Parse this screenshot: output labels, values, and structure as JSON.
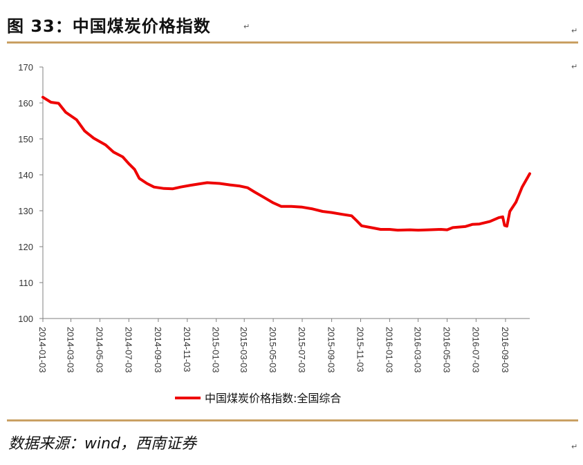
{
  "figure": {
    "title": "图 33：中国煤炭价格指数",
    "source": "数据来源：wind，西南证券",
    "para_mark": "↵"
  },
  "colors": {
    "line": "#ee0000",
    "rule": "#c9a063",
    "axis": "#7f7f7f"
  },
  "chart_data": {
    "type": "line",
    "title": "",
    "xlabel": "",
    "ylabel": "",
    "ylim": [
      100,
      170
    ],
    "yticks": [
      100,
      110,
      120,
      130,
      140,
      150,
      160,
      170
    ],
    "xlim": [
      "2014-01-03",
      "2016-10-24"
    ],
    "xticks": [
      "2014-01-03",
      "2014-03-03",
      "2014-05-03",
      "2014-07-03",
      "2014-09-03",
      "2014-11-03",
      "2015-01-03",
      "2015-03-03",
      "2015-05-03",
      "2015-07-03",
      "2015-09-03",
      "2015-11-03",
      "2016-01-03",
      "2016-03-03",
      "2016-05-03",
      "2016-07-03",
      "2016-09-03"
    ],
    "grid": false,
    "legend": "bottom",
    "series": [
      {
        "name": "中国煤炭价格指数:全国综合",
        "points": [
          [
            "2014-01-03",
            161.6
          ],
          [
            "2014-01-20",
            160.2
          ],
          [
            "2014-02-05",
            159.9
          ],
          [
            "2014-02-20",
            157.4
          ],
          [
            "2014-03-15",
            155.3
          ],
          [
            "2014-04-01",
            152.2
          ],
          [
            "2014-04-20",
            150.2
          ],
          [
            "2014-05-15",
            148.3
          ],
          [
            "2014-06-01",
            146.3
          ],
          [
            "2014-06-20",
            145.0
          ],
          [
            "2014-07-03",
            143.1
          ],
          [
            "2014-07-15",
            141.5
          ],
          [
            "2014-07-25",
            139.0
          ],
          [
            "2014-08-10",
            137.6
          ],
          [
            "2014-08-25",
            136.6
          ],
          [
            "2014-09-15",
            136.2
          ],
          [
            "2014-10-03",
            136.1
          ],
          [
            "2014-10-20",
            136.6
          ],
          [
            "2014-11-10",
            137.1
          ],
          [
            "2014-11-25",
            137.4
          ],
          [
            "2014-12-15",
            137.8
          ],
          [
            "2015-01-10",
            137.6
          ],
          [
            "2015-02-01",
            137.2
          ],
          [
            "2015-02-20",
            136.9
          ],
          [
            "2015-03-10",
            136.4
          ],
          [
            "2015-03-25",
            135.2
          ],
          [
            "2015-04-15",
            133.6
          ],
          [
            "2015-05-03",
            132.2
          ],
          [
            "2015-05-20",
            131.2
          ],
          [
            "2015-06-10",
            131.2
          ],
          [
            "2015-07-03",
            131.0
          ],
          [
            "2015-07-25",
            130.5
          ],
          [
            "2015-08-15",
            129.8
          ],
          [
            "2015-09-03",
            129.5
          ],
          [
            "2015-09-25",
            129.0
          ],
          [
            "2015-10-15",
            128.6
          ],
          [
            "2015-10-25",
            127.3
          ],
          [
            "2015-11-05",
            125.8
          ],
          [
            "2015-11-25",
            125.3
          ],
          [
            "2015-12-15",
            124.8
          ],
          [
            "2016-01-03",
            124.8
          ],
          [
            "2016-01-20",
            124.6
          ],
          [
            "2016-02-15",
            124.7
          ],
          [
            "2016-03-03",
            124.6
          ],
          [
            "2016-03-25",
            124.7
          ],
          [
            "2016-04-20",
            124.8
          ],
          [
            "2016-05-03",
            124.7
          ],
          [
            "2016-05-15",
            125.3
          ],
          [
            "2016-06-10",
            125.6
          ],
          [
            "2016-06-25",
            126.2
          ],
          [
            "2016-07-10",
            126.3
          ],
          [
            "2016-08-01",
            127.0
          ],
          [
            "2016-08-20",
            128.1
          ],
          [
            "2016-08-28",
            128.3
          ],
          [
            "2016-09-01",
            125.9
          ],
          [
            "2016-09-06",
            125.7
          ],
          [
            "2016-09-12",
            129.8
          ],
          [
            "2016-09-25",
            132.4
          ],
          [
            "2016-10-08",
            136.6
          ],
          [
            "2016-10-24",
            140.3
          ]
        ]
      }
    ]
  }
}
